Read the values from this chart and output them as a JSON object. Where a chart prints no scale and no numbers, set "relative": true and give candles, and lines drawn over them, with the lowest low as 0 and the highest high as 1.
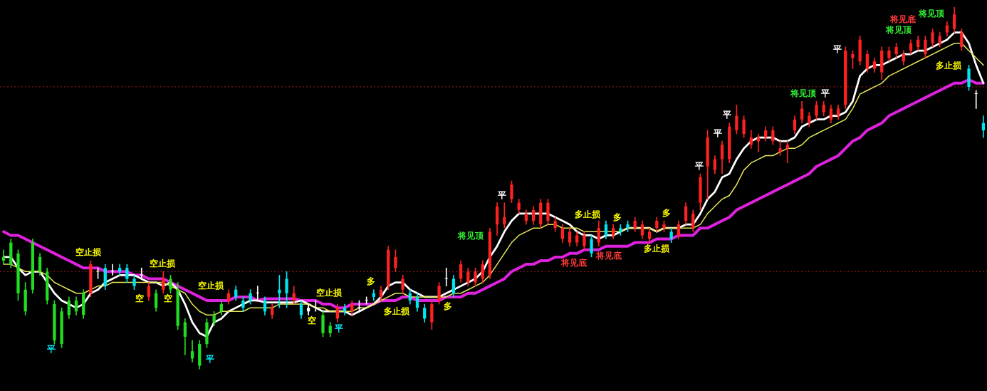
{
  "chart_data": {
    "type": "candlestick",
    "relative": true,
    "grid": false,
    "legend": false,
    "categories": [
      null,
      null,
      null,
      null,
      null,
      null,
      null,
      null,
      null,
      null,
      null,
      null,
      null,
      null,
      null,
      null,
      null,
      null,
      null,
      null,
      null,
      null,
      null,
      null,
      null,
      null,
      null,
      null,
      null,
      null,
      null,
      null,
      null,
      null,
      null,
      null,
      null,
      null,
      null,
      null,
      null,
      null,
      null,
      null,
      null,
      null,
      null,
      null,
      null,
      null,
      null,
      null,
      null,
      null,
      null,
      null,
      null,
      null,
      null,
      null,
      null,
      null,
      null,
      null,
      null,
      null,
      null,
      null,
      null,
      null,
      null,
      null,
      null,
      null,
      null,
      null,
      null,
      null,
      null,
      null,
      null,
      null,
      null,
      null,
      null,
      null,
      null,
      null,
      null,
      null,
      null,
      null,
      null,
      null,
      null,
      null,
      null,
      null,
      null,
      null,
      null,
      null,
      null,
      null,
      null,
      null,
      null,
      null,
      null,
      null,
      null,
      null,
      null,
      null,
      null,
      null,
      null,
      null,
      null,
      null,
      null,
      null,
      null,
      null,
      null,
      null,
      null,
      null,
      null,
      null,
      null,
      null,
      null,
      null,
      null,
      null
    ],
    "ohlc": [
      [
        0.31,
        0.33,
        0.29,
        0.3
      ],
      [
        0.29,
        0.36,
        0.28,
        0.35
      ],
      [
        0.32,
        0.33,
        0.19,
        0.21
      ],
      [
        0.22,
        0.24,
        0.15,
        0.16
      ],
      [
        0.22,
        0.36,
        0.21,
        0.35
      ],
      [
        0.31,
        0.32,
        0.26,
        0.27
      ],
      [
        0.27,
        0.28,
        0.18,
        0.19
      ],
      [
        0.18,
        0.19,
        0.07,
        0.08
      ],
      [
        0.16,
        0.17,
        0.06,
        0.07
      ],
      [
        0.15,
        0.2,
        0.14,
        0.19
      ],
      [
        0.16,
        0.2,
        0.15,
        0.19
      ],
      [
        0.15,
        0.22,
        0.14,
        0.21
      ],
      [
        0.21,
        0.3,
        0.2,
        0.29
      ],
      [
        0.27,
        0.28,
        0.25,
        0.27
      ],
      [
        0.28,
        0.29,
        0.22,
        0.23
      ],
      [
        0.27,
        0.29,
        0.26,
        0.27
      ],
      [
        0.28,
        0.29,
        0.26,
        0.27
      ],
      [
        0.28,
        0.29,
        0.24,
        0.25
      ],
      [
        0.25,
        0.26,
        0.22,
        0.23
      ],
      [
        0.26,
        0.28,
        0.25,
        0.26
      ],
      [
        0.2,
        0.24,
        0.19,
        0.23
      ],
      [
        0.21,
        0.22,
        0.16,
        0.17
      ],
      [
        0.22,
        0.27,
        0.21,
        0.25
      ],
      [
        0.25,
        0.26,
        0.21,
        0.22
      ],
      [
        0.22,
        0.24,
        0.11,
        0.12
      ],
      [
        0.13,
        0.14,
        0.04,
        0.09
      ],
      [
        0.05,
        0.08,
        0.02,
        0.03
      ],
      [
        0.01,
        0.08,
        0,
        0.07
      ],
      [
        0.07,
        0.14,
        0.06,
        0.13
      ],
      [
        0.13,
        0.16,
        0.12,
        0.15
      ],
      [
        0.16,
        0.19,
        0.15,
        0.18
      ],
      [
        0.19,
        0.22,
        0.18,
        0.21
      ],
      [
        0.22,
        0.23,
        0.19,
        0.2
      ],
      [
        0.19,
        0.2,
        0.16,
        0.17
      ],
      [
        0.21,
        0.22,
        0.18,
        0.19
      ],
      [
        0.21,
        0.23,
        0.19,
        0.21
      ],
      [
        0.19,
        0.2,
        0.15,
        0.16
      ],
      [
        0.15,
        0.18,
        0.14,
        0.17
      ],
      [
        0.22,
        0.26,
        0.17,
        0.21
      ],
      [
        0.25,
        0.27,
        0.17,
        0.21
      ],
      [
        0.19,
        0.23,
        0.18,
        0.21
      ],
      [
        0.18,
        0.19,
        0.14,
        0.15
      ],
      [
        0.17,
        0.18,
        0.15,
        0.16
      ],
      [
        0.17,
        0.19,
        0.16,
        0.17
      ],
      [
        0.15,
        0.16,
        0.09,
        0.1
      ],
      [
        0.12,
        0.13,
        0.09,
        0.1
      ],
      [
        0.14,
        0.18,
        0.13,
        0.17
      ],
      [
        0.17,
        0.18,
        0.15,
        0.16
      ],
      [
        0.16,
        0.19,
        0.15,
        0.18
      ],
      [
        0.17,
        0.19,
        0.16,
        0.17
      ],
      [
        0.19,
        0.2,
        0.18,
        0.19
      ],
      [
        0.21,
        0.22,
        0.19,
        0.2
      ],
      [
        0.2,
        0.23,
        0.19,
        0.22
      ],
      [
        0.23,
        0.34,
        0.22,
        0.33
      ],
      [
        0.28,
        0.33,
        0.27,
        0.31
      ],
      [
        0.22,
        0.26,
        0.21,
        0.25
      ],
      [
        0.21,
        0.22,
        0.18,
        0.19
      ],
      [
        0.2,
        0.21,
        0.16,
        0.17
      ],
      [
        0.17,
        0.18,
        0.13,
        0.14
      ],
      [
        0.13,
        0.19,
        0.11,
        0.18
      ],
      [
        0.19,
        0.24,
        0.18,
        0.23
      ],
      [
        0.25,
        0.28,
        0.23,
        0.25
      ],
      [
        0.25,
        0.26,
        0.2,
        0.21
      ],
      [
        0.25,
        0.3,
        0.24,
        0.29
      ],
      [
        0.24,
        0.28,
        0.23,
        0.27
      ],
      [
        0.24,
        0.28,
        0.23,
        0.27
      ],
      [
        0.25,
        0.3,
        0.24,
        0.29
      ],
      [
        0.26,
        0.39,
        0.25,
        0.38
      ],
      [
        0.4,
        0.46,
        0.37,
        0.45
      ],
      [
        0.4,
        0.46,
        0.39,
        0.42
      ],
      [
        0.47,
        0.52,
        0.46,
        0.51
      ],
      [
        0.44,
        0.47,
        0.43,
        0.46
      ],
      [
        0.41,
        0.44,
        0.4,
        0.43
      ],
      [
        0.41,
        0.45,
        0.4,
        0.44
      ],
      [
        0.4,
        0.47,
        0.39,
        0.46
      ],
      [
        0.41,
        0.47,
        0.4,
        0.46
      ],
      [
        0.39,
        0.42,
        0.38,
        0.41
      ],
      [
        0.36,
        0.4,
        0.35,
        0.39
      ],
      [
        0.35,
        0.39,
        0.34,
        0.38
      ],
      [
        0.35,
        0.38,
        0.34,
        0.37
      ],
      [
        0.34,
        0.38,
        0.33,
        0.37
      ],
      [
        0.36,
        0.37,
        0.31,
        0.32
      ],
      [
        0.35,
        0.41,
        0.34,
        0.39
      ],
      [
        0.4,
        0.41,
        0.36,
        0.37
      ],
      [
        0.37,
        0.4,
        0.36,
        0.39
      ],
      [
        0.39,
        0.4,
        0.37,
        0.38
      ],
      [
        0.4,
        0.41,
        0.38,
        0.39
      ],
      [
        0.39,
        0.42,
        0.38,
        0.41
      ],
      [
        0.37,
        0.41,
        0.36,
        0.4
      ],
      [
        0.36,
        0.39,
        0.35,
        0.38
      ],
      [
        0.39,
        0.42,
        0.38,
        0.41
      ],
      [
        0.39,
        0.41,
        0.38,
        0.4
      ],
      [
        0.38,
        0.39,
        0.35,
        0.36
      ],
      [
        0.37,
        0.41,
        0.36,
        0.4
      ],
      [
        0.41,
        0.46,
        0.4,
        0.45
      ],
      [
        0.39,
        0.44,
        0.38,
        0.43
      ],
      [
        0.46,
        0.54,
        0.44,
        0.53
      ],
      [
        0.56,
        0.66,
        0.47,
        0.64
      ],
      [
        0.55,
        0.59,
        0.54,
        0.58
      ],
      [
        0.58,
        0.63,
        0.54,
        0.62
      ],
      [
        0.58,
        0.68,
        0.57,
        0.67
      ],
      [
        0.66,
        0.73,
        0.65,
        0.7
      ],
      [
        0.65,
        0.7,
        0.64,
        0.69
      ],
      [
        0.62,
        0.66,
        0.61,
        0.64
      ],
      [
        0.63,
        0.65,
        0.6,
        0.64
      ],
      [
        0.64,
        0.67,
        0.63,
        0.66
      ],
      [
        0.63,
        0.67,
        0.62,
        0.66
      ],
      [
        0.6,
        0.63,
        0.59,
        0.61
      ],
      [
        0.61,
        0.63,
        0.57,
        0.62
      ],
      [
        0.66,
        0.7,
        0.65,
        0.69
      ],
      [
        0.69,
        0.74,
        0.68,
        0.72
      ],
      [
        0.68,
        0.71,
        0.67,
        0.7
      ],
      [
        0.7,
        0.74,
        0.69,
        0.73
      ],
      [
        0.71,
        0.74,
        0.7,
        0.73
      ],
      [
        0.69,
        0.73,
        0.68,
        0.72
      ],
      [
        0.7,
        0.73,
        0.69,
        0.72
      ],
      [
        0.73,
        0.89,
        0.72,
        0.88
      ],
      [
        0.86,
        0.88,
        0.83,
        0.87
      ],
      [
        0.85,
        0.92,
        0.84,
        0.91
      ],
      [
        0.83,
        0.88,
        0.82,
        0.87
      ],
      [
        0.83,
        0.86,
        0.82,
        0.85
      ],
      [
        0.82,
        0.89,
        0.8,
        0.88
      ],
      [
        0.86,
        0.89,
        0.85,
        0.88
      ],
      [
        0.87,
        0.9,
        0.86,
        0.89
      ],
      [
        0.85,
        0.88,
        0.84,
        0.87
      ],
      [
        0.88,
        0.91,
        0.87,
        0.9
      ],
      [
        0.89,
        0.92,
        0.88,
        0.91
      ],
      [
        0.87,
        0.92,
        0.86,
        0.91
      ],
      [
        0.9,
        0.94,
        0.89,
        0.93
      ],
      [
        0.9,
        0.93,
        0.89,
        0.92
      ],
      [
        0.93,
        0.96,
        0.92,
        0.95
      ],
      [
        0.94,
        1,
        0.93,
        0.98
      ],
      [
        0.89,
        0.94,
        0.88,
        0.93
      ],
      [
        0.83,
        0.84,
        0.77,
        0.78
      ],
      [
        0.76,
        0.77,
        0.72,
        0.76
      ],
      [
        0.68,
        0.7,
        0.64,
        0.66
      ]
    ],
    "colors": [
      "#22dd22",
      "#22dd22",
      "#22dd22",
      "#22dd22",
      "#22dd22",
      "#22dd22",
      "#22dd22",
      "#22dd22",
      "#22dd22",
      "#22dd22",
      "#22dd22",
      "#22dd22",
      "#ff2222",
      "#ffffff",
      "#00e5ee",
      "#ffffff",
      "#00e5ee",
      "#00e5ee",
      "#00e5ee",
      "#ffffff",
      "#ff2222",
      "#22dd22",
      "#ff2222",
      "#22dd22",
      "#22dd22",
      "#22dd22",
      "#22dd22",
      "#22dd22",
      "#22dd22",
      "#22dd22",
      "#22dd22",
      "#ff2222",
      "#00e5ee",
      "#00e5ee",
      "#00e5ee",
      "#ffffff",
      "#00e5ee",
      "#ff2222",
      "#00e5ee",
      "#00e5ee",
      "#ff2222",
      "#00e5ee",
      "#ffffff",
      "#ffffff",
      "#22dd22",
      "#22dd22",
      "#ff2222",
      "#00e5ee",
      "#ff2222",
      "#ffffff",
      "#ffffff",
      "#00e5ee",
      "#ff2222",
      "#ff2222",
      "#ff2222",
      "#ff2222",
      "#00e5ee",
      "#00e5ee",
      "#00e5ee",
      "#ff2222",
      "#ff2222",
      "#ffffff",
      "#00e5ee",
      "#ff2222",
      "#ff2222",
      "#ff2222",
      "#ff2222",
      "#ff2222",
      "#ff2222",
      "#ff2222",
      "#ff2222",
      "#ff2222",
      "#ff2222",
      "#ff2222",
      "#ff2222",
      "#ff2222",
      "#ff2222",
      "#ff2222",
      "#ff2222",
      "#ff2222",
      "#ff2222",
      "#00e5ee",
      "#ff2222",
      "#00e5ee",
      "#ff2222",
      "#00e5ee",
      "#00e5ee",
      "#ff2222",
      "#ff2222",
      "#ff2222",
      "#ff2222",
      "#ff2222",
      "#00e5ee",
      "#ff2222",
      "#ff2222",
      "#ff2222",
      "#ff2222",
      "#ff2222",
      "#ff2222",
      "#ff2222",
      "#ff2222",
      "#ff2222",
      "#ff2222",
      "#ff2222",
      "#ff2222",
      "#ff2222",
      "#ff2222",
      "#ff2222",
      "#ff2222",
      "#ff2222",
      "#ff2222",
      "#ff2222",
      "#ff2222",
      "#ff2222",
      "#ff2222",
      "#ff2222",
      "#ff2222",
      "#ff2222",
      "#ff2222",
      "#ff2222",
      "#ff2222",
      "#ff2222",
      "#ff2222",
      "#ff2222",
      "#ff2222",
      "#ff2222",
      "#ff2222",
      "#ff2222",
      "#ff2222",
      "#ff2222",
      "#ff2222",
      "#ff2222",
      "#ff2222",
      "#00e5ee",
      "#ffffff",
      "#00e5ee"
    ],
    "series": [
      {
        "type": "line",
        "color": "#dd22dd",
        "values": [
          0.38,
          0.37,
          0.37,
          0.36,
          0.35,
          0.34,
          0.33,
          0.32,
          0.31,
          0.3,
          0.29,
          0.28,
          0.28,
          0.28,
          0.27,
          0.27,
          0.27,
          0.27,
          0.26,
          0.26,
          0.25,
          0.25,
          0.25,
          0.24,
          0.23,
          0.22,
          0.21,
          0.2,
          0.19,
          0.19,
          0.19,
          0.19,
          0.2,
          0.2,
          0.2,
          0.19,
          0.195,
          0.195,
          0.195,
          0.195,
          0.195,
          0.19,
          0.19,
          0.19,
          0.18,
          0.18,
          0.17,
          0.17,
          0.18,
          0.18,
          0.18,
          0.18,
          0.19,
          0.19,
          0.19,
          0.2,
          0.2,
          0.19,
          0.19,
          0.19,
          0.19,
          0.2,
          0.2,
          0.2,
          0.21,
          0.21,
          0.22,
          0.23,
          0.24,
          0.25,
          0.27,
          0.28,
          0.29,
          0.29,
          0.3,
          0.3,
          0.31,
          0.31,
          0.32,
          0.32,
          0.33,
          0.33,
          0.33,
          0.34,
          0.34,
          0.34,
          0.34,
          0.35,
          0.35,
          0.35,
          0.36,
          0.36,
          0.36,
          0.37,
          0.37,
          0.37,
          0.39,
          0.39,
          0.4,
          0.41,
          0.42,
          0.44,
          0.45,
          0.46,
          0.47,
          0.48,
          0.49,
          0.5,
          0.51,
          0.52,
          0.53,
          0.54,
          0.56,
          0.57,
          0.58,
          0.59,
          0.61,
          0.63,
          0.64,
          0.66,
          0.67,
          0.68,
          0.7,
          0.71,
          0.72,
          0.73,
          0.74,
          0.75,
          0.76,
          0.77,
          0.78,
          0.79,
          0.79,
          0.8,
          0.79,
          0.79
        ]
      },
      {
        "type": "line",
        "color": "#ffffff",
        "values": [
          0.31,
          0.31,
          0.28,
          0.26,
          0.27,
          0.27,
          0.24,
          0.21,
          0.19,
          0.18,
          0.17,
          0.18,
          0.21,
          0.22,
          0.24,
          0.25,
          0.26,
          0.26,
          0.26,
          0.25,
          0.24,
          0.24,
          0.23,
          0.24,
          0.22,
          0.18,
          0.13,
          0.1,
          0.09,
          0.13,
          0.14,
          0.16,
          0.17,
          0.18,
          0.19,
          0.19,
          0.185,
          0.185,
          0.185,
          0.185,
          0.185,
          0.19,
          0.18,
          0.17,
          0.16,
          0.16,
          0.16,
          0.16,
          0.15,
          0.16,
          0.17,
          0.18,
          0.2,
          0.23,
          0.24,
          0.24,
          0.22,
          0.21,
          0.2,
          0.2,
          0.2,
          0.21,
          0.22,
          0.23,
          0.24,
          0.25,
          0.27,
          0.31,
          0.34,
          0.38,
          0.41,
          0.43,
          0.43,
          0.43,
          0.43,
          0.43,
          0.42,
          0.41,
          0.4,
          0.38,
          0.37,
          0.37,
          0.36,
          0.37,
          0.37,
          0.38,
          0.39,
          0.39,
          0.39,
          0.39,
          0.38,
          0.39,
          0.39,
          0.39,
          0.4,
          0.4,
          0.43,
          0.47,
          0.49,
          0.53,
          0.54,
          0.58,
          0.61,
          0.63,
          0.64,
          0.64,
          0.64,
          0.63,
          0.63,
          0.64,
          0.67,
          0.68,
          0.69,
          0.69,
          0.7,
          0.7,
          0.71,
          0.74,
          0.81,
          0.83,
          0.84,
          0.84,
          0.85,
          0.86,
          0.87,
          0.87,
          0.88,
          0.88,
          0.89,
          0.9,
          0.91,
          0.93,
          0.93,
          0.9,
          0.84,
          0.79
        ]
      },
      {
        "type": "line",
        "color": "#e6e65a",
        "values": [
          0.29,
          0.29,
          0.28,
          0.27,
          0.27,
          0.27,
          0.26,
          0.24,
          0.23,
          0.22,
          0.21,
          0.21,
          0.22,
          0.23,
          0.23,
          0.24,
          0.24,
          0.24,
          0.24,
          0.24,
          0.24,
          0.24,
          0.24,
          0.23,
          0.22,
          0.21,
          0.18,
          0.16,
          0.15,
          0.15,
          0.16,
          0.16,
          0.16,
          0.16,
          0.17,
          0.17,
          0.17,
          0.17,
          0.18,
          0.18,
          0.18,
          0.18,
          0.18,
          0.17,
          0.17,
          0.16,
          0.16,
          0.16,
          0.16,
          0.17,
          0.17,
          0.18,
          0.19,
          0.2,
          0.21,
          0.21,
          0.2,
          0.2,
          0.2,
          0.2,
          0.2,
          0.2,
          0.21,
          0.21,
          0.22,
          0.23,
          0.24,
          0.26,
          0.29,
          0.32,
          0.35,
          0.37,
          0.38,
          0.39,
          0.39,
          0.4,
          0.4,
          0.39,
          0.39,
          0.39,
          0.38,
          0.38,
          0.38,
          0.38,
          0.38,
          0.38,
          0.39,
          0.39,
          0.39,
          0.39,
          0.38,
          0.39,
          0.39,
          0.39,
          0.39,
          0.39,
          0.4,
          0.43,
          0.45,
          0.47,
          0.48,
          0.51,
          0.55,
          0.57,
          0.58,
          0.59,
          0.59,
          0.6,
          0.61,
          0.61,
          0.62,
          0.64,
          0.65,
          0.66,
          0.67,
          0.68,
          0.69,
          0.72,
          0.76,
          0.77,
          0.78,
          0.79,
          0.81,
          0.82,
          0.83,
          0.84,
          0.85,
          0.86,
          0.87,
          0.88,
          0.89,
          0.9,
          0.9,
          0.88,
          0.86,
          0.84
        ]
      }
    ],
    "ref_lines": [
      {
        "axis": "y",
        "value": 0.78,
        "color": "#a01818",
        "line_style": "dotted"
      },
      {
        "axis": "y",
        "value": 0.27,
        "color": "#a01818",
        "line_style": "dotted"
      }
    ],
    "annotations": [
      "空止损",
      "平",
      "空",
      "空止损",
      "空",
      "平",
      "空止损",
      "空",
      "空止损",
      "平",
      "多",
      "多止损",
      "多",
      "将见顶",
      "平",
      "将见底",
      "多止损",
      "将见底",
      "多",
      "多止损",
      "多",
      "平",
      "平",
      "平",
      "将见顶",
      "平",
      "平",
      "将见顶",
      "将见底",
      "将见顶",
      "多止损"
    ]
  }
}
